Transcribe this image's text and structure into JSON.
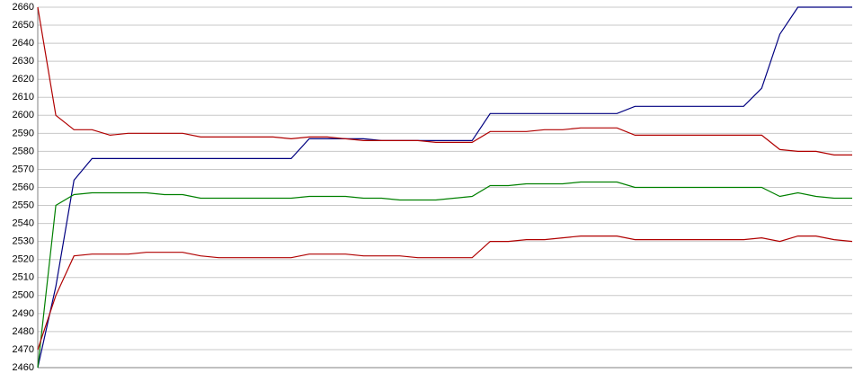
{
  "chart_data": {
    "type": "line",
    "categories": [
      null,
      null,
      null,
      null,
      null,
      null,
      null,
      null,
      null,
      null,
      null,
      null,
      null,
      null,
      null,
      null,
      null,
      null,
      null,
      null,
      null,
      null,
      null,
      null,
      null,
      null,
      null,
      null,
      null,
      null,
      null,
      null,
      null,
      null,
      null,
      null,
      null,
      null,
      null,
      null,
      null,
      null,
      null,
      null,
      null,
      null
    ],
    "series": [
      {
        "color": "#000080",
        "values": [
          2460,
          2505,
          2564,
          2576,
          2576,
          2576,
          2576,
          2576,
          2576,
          2576,
          2576,
          2576,
          2576,
          2576,
          2576,
          2587,
          2587,
          2587,
          2587,
          2586,
          2586,
          2586,
          2586,
          2586,
          2586,
          2601,
          2601,
          2601,
          2601,
          2601,
          2601,
          2601,
          2601,
          2605,
          2605,
          2605,
          2605,
          2605,
          2605,
          2605,
          2615,
          2645,
          2660,
          2660,
          2660,
          2660
        ]
      },
      {
        "color": "#b00000",
        "values": [
          2660,
          2600,
          2592,
          2592,
          2589,
          2590,
          2590,
          2590,
          2590,
          2588,
          2588,
          2588,
          2588,
          2588,
          2587,
          2588,
          2588,
          2587,
          2586,
          2586,
          2586,
          2586,
          2585,
          2585,
          2585,
          2591,
          2591,
          2591,
          2592,
          2592,
          2593,
          2593,
          2593,
          2589,
          2589,
          2589,
          2589,
          2589,
          2589,
          2589,
          2589,
          2581,
          2580,
          2580,
          2578,
          2578
        ]
      },
      {
        "color": "#008000",
        "values": [
          2460,
          2550,
          2556,
          2557,
          2557,
          2557,
          2557,
          2556,
          2556,
          2554,
          2554,
          2554,
          2554,
          2554,
          2554,
          2555,
          2555,
          2555,
          2554,
          2554,
          2553,
          2553,
          2553,
          2554,
          2555,
          2561,
          2561,
          2562,
          2562,
          2562,
          2563,
          2563,
          2563,
          2560,
          2560,
          2560,
          2560,
          2560,
          2560,
          2560,
          2560,
          2555,
          2557,
          2555,
          2554,
          2554
        ]
      },
      {
        "color": "#b00000",
        "values": [
          2470,
          2500,
          2522,
          2523,
          2523,
          2523,
          2524,
          2524,
          2524,
          2522,
          2521,
          2521,
          2521,
          2521,
          2521,
          2523,
          2523,
          2523,
          2522,
          2522,
          2522,
          2521,
          2521,
          2521,
          2521,
          2530,
          2530,
          2531,
          2531,
          2532,
          2533,
          2533,
          2533,
          2531,
          2531,
          2531,
          2531,
          2531,
          2531,
          2531,
          2532,
          2530,
          2533,
          2533,
          2531,
          2530
        ]
      }
    ],
    "ylim": [
      2460,
      2660
    ],
    "yticks": [
      2460,
      2470,
      2480,
      2490,
      2500,
      2510,
      2520,
      2530,
      2540,
      2550,
      2560,
      2570,
      2580,
      2590,
      2600,
      2610,
      2620,
      2630,
      2640,
      2650,
      2660
    ],
    "grid": true
  }
}
